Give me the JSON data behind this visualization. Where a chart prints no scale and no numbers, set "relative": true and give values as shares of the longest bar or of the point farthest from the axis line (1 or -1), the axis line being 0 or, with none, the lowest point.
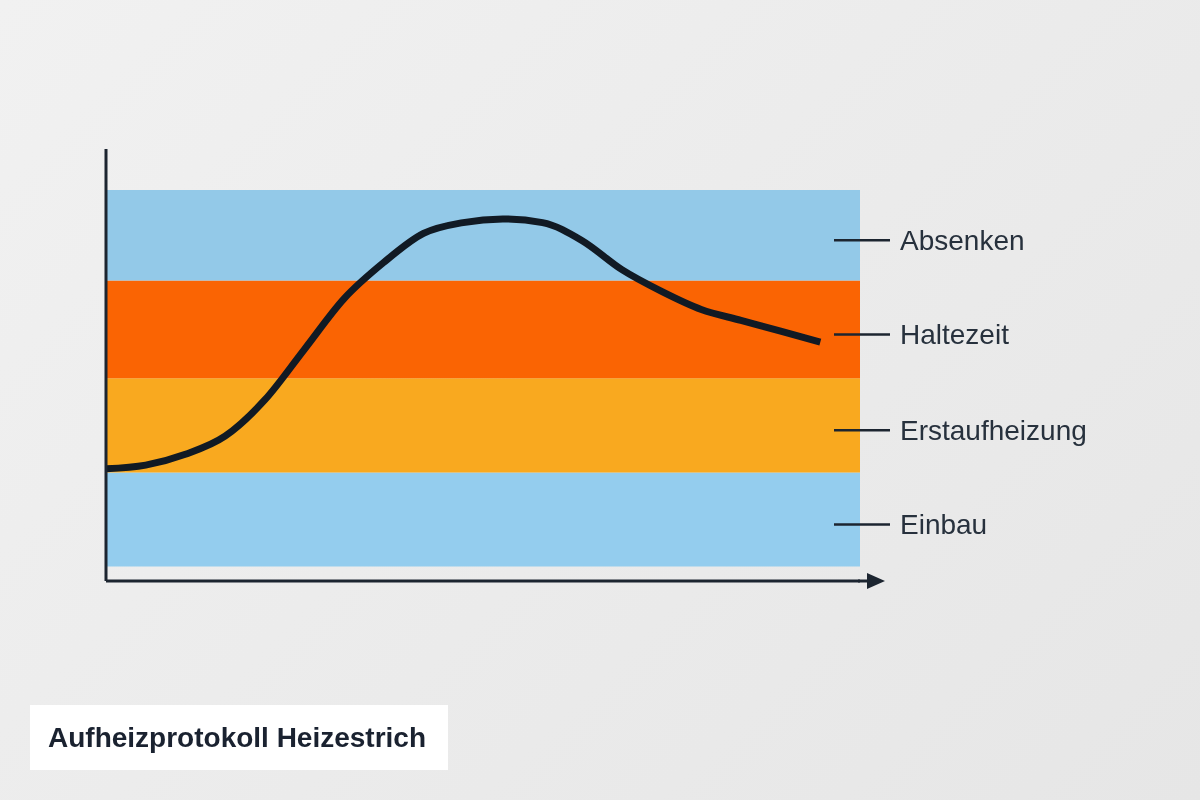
{
  "chart_data": {
    "type": "line",
    "title": "Aufheizprotokoll Heizestrich",
    "relative": true,
    "marker": "none",
    "color": "#111a24",
    "categories": [
      null,
      null,
      null,
      null,
      null,
      null,
      null,
      null,
      null,
      null,
      null,
      null,
      null,
      null,
      null,
      null,
      null,
      null,
      null,
      null
    ],
    "values": [
      0.31,
      0.32,
      0.35,
      0.4,
      0.5,
      0.64,
      0.78,
      0.88,
      0.96,
      0.99,
      1,
      0.99,
      0.94,
      0.86,
      0.8,
      0.75,
      0.72,
      0.69,
      0.66,
      null
    ],
    "bands": [
      {
        "axis": "y",
        "from": 0.04,
        "to": 0.3,
        "label": "Einbau",
        "color": "#94cdee"
      },
      {
        "axis": "y",
        "from": 0.3,
        "to": 0.56,
        "label": "Erstaufheizung",
        "color": "#f9a91f"
      },
      {
        "axis": "y",
        "from": 0.56,
        "to": 0.83,
        "label": "Haltezeit",
        "color": "#fa6403"
      },
      {
        "axis": "y",
        "from": 0.83,
        "to": 1.08,
        "label": "Absenken",
        "color": "#93c9e8"
      }
    ]
  }
}
